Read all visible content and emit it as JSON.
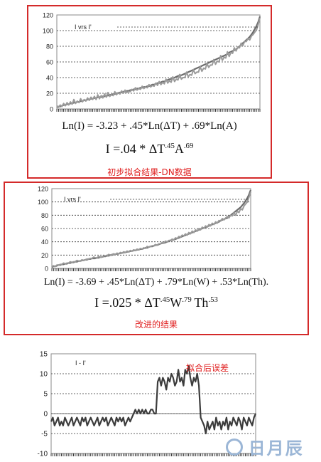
{
  "charts": [
    {
      "type": "line",
      "legend": "I vrs I'",
      "ylim": [
        0,
        120
      ],
      "yticks": [
        0,
        20,
        40,
        60,
        80,
        100,
        120
      ],
      "n": 120,
      "series": [
        {
          "values": [
            2,
            3,
            3,
            4,
            5,
            5,
            6,
            6,
            7,
            7,
            8,
            8,
            9,
            9,
            10,
            10,
            11,
            11,
            12,
            12,
            13,
            13,
            14,
            14,
            15,
            15,
            15,
            16,
            16,
            17,
            17,
            18,
            18,
            19,
            19,
            20,
            20,
            21,
            21,
            22,
            22,
            23,
            23,
            24,
            24,
            25,
            25,
            26,
            26,
            27,
            27,
            28,
            28,
            29,
            29,
            30,
            31,
            31,
            32,
            33,
            33,
            34,
            35,
            35,
            36,
            37,
            38,
            38,
            39,
            40,
            41,
            42,
            43,
            43,
            44,
            45,
            46,
            47,
            48,
            49,
            50,
            51,
            52,
            53,
            54,
            55,
            56,
            57,
            58,
            59,
            60,
            61,
            62,
            63,
            64,
            65,
            66,
            67,
            68,
            69,
            70,
            72,
            73,
            74,
            75,
            76,
            78,
            80,
            82,
            84,
            86,
            88,
            90,
            92,
            95,
            98,
            102,
            106,
            111,
            118
          ]
        },
        {
          "values": [
            4,
            2,
            5,
            3,
            7,
            4,
            8,
            5,
            9,
            6,
            12,
            7,
            10,
            8,
            13,
            9,
            12,
            10,
            14,
            11,
            15,
            12,
            16,
            12,
            18,
            13,
            17,
            14,
            19,
            15,
            21,
            16,
            18,
            17,
            22,
            18,
            21,
            19,
            23,
            20,
            24,
            21,
            22,
            22,
            25,
            23,
            27,
            24,
            26,
            25,
            29,
            26,
            28,
            27,
            31,
            28,
            30,
            29,
            33,
            30,
            35,
            31,
            34,
            32,
            38,
            33,
            36,
            34,
            41,
            35,
            38,
            37,
            44,
            38,
            40,
            40,
            47,
            41,
            44,
            43,
            50,
            45,
            47,
            47,
            54,
            48,
            52,
            51,
            58,
            53,
            56,
            56,
            63,
            57,
            61,
            60,
            68,
            62,
            66,
            65,
            73,
            67,
            72,
            71,
            78,
            74,
            79,
            78,
            84,
            81,
            86,
            86,
            90,
            88,
            93,
            95,
            98,
            101,
            108,
            116
          ]
        }
      ]
    },
    {
      "type": "line",
      "legend": "I  vrs  I'",
      "ylim": [
        0,
        120
      ],
      "yticks": [
        0,
        20,
        40,
        60,
        80,
        100,
        120
      ],
      "n": 120,
      "series": [
        {
          "values": [
            2,
            3,
            3,
            4,
            5,
            5,
            6,
            6,
            7,
            7,
            8,
            8,
            9,
            9,
            10,
            10,
            11,
            11,
            12,
            12,
            13,
            13,
            14,
            14,
            15,
            15,
            15,
            16,
            16,
            17,
            17,
            18,
            18,
            19,
            19,
            20,
            20,
            21,
            21,
            22,
            22,
            23,
            23,
            24,
            24,
            25,
            25,
            26,
            26,
            27,
            27,
            28,
            28,
            29,
            29,
            30,
            31,
            31,
            32,
            33,
            33,
            34,
            35,
            35,
            36,
            37,
            38,
            38,
            39,
            40,
            41,
            42,
            43,
            43,
            44,
            45,
            46,
            47,
            48,
            49,
            50,
            51,
            52,
            53,
            54,
            55,
            56,
            57,
            58,
            59,
            60,
            61,
            62,
            63,
            64,
            65,
            66,
            67,
            68,
            69,
            70,
            72,
            73,
            74,
            75,
            76,
            78,
            80,
            82,
            84,
            86,
            88,
            90,
            92,
            95,
            98,
            102,
            106,
            111,
            118
          ]
        },
        {
          "values": [
            3,
            4,
            3,
            5,
            5,
            6,
            6,
            8,
            7,
            8,
            8,
            10,
            9,
            10,
            10,
            12,
            11,
            11,
            13,
            12,
            13,
            14,
            14,
            15,
            15,
            17,
            16,
            16,
            18,
            17,
            17,
            19,
            19,
            19,
            21,
            20,
            21,
            22,
            21,
            23,
            22,
            24,
            23,
            25,
            24,
            26,
            25,
            27,
            26,
            28,
            27,
            29,
            28,
            30,
            29,
            31,
            30,
            33,
            32,
            33,
            34,
            34,
            36,
            35,
            37,
            37,
            39,
            38,
            41,
            40,
            42,
            42,
            44,
            43,
            46,
            45,
            48,
            47,
            50,
            49,
            52,
            50,
            54,
            52,
            56,
            54,
            58,
            56,
            60,
            58,
            62,
            60,
            64,
            62,
            66,
            64,
            68,
            66,
            70,
            68,
            72,
            71,
            75,
            73,
            76,
            78,
            76,
            80,
            79,
            84,
            80,
            86,
            84,
            90,
            88,
            94,
            97,
            100,
            107,
            115
          ]
        }
      ]
    },
    {
      "type": "line",
      "legend": "I  -  I'",
      "ylim": [
        -10,
        15
      ],
      "yticks": [
        -10,
        -5,
        0,
        5,
        10,
        15
      ],
      "n": 120,
      "series": [
        {
          "values": [
            -2,
            -1,
            -3,
            -2,
            -1,
            -3,
            -2,
            -3,
            -1,
            -2,
            -3,
            -2,
            -1,
            -3,
            -2,
            -1,
            -2,
            -3,
            -1,
            -2,
            -1,
            -3,
            -2,
            -1,
            -2,
            -3,
            -2,
            -1,
            -3,
            -2,
            -1,
            -2,
            -1,
            -3,
            -2,
            -1,
            -2,
            -3,
            -1,
            -2,
            -1,
            -2,
            -1,
            -3,
            -2,
            -1,
            -2,
            -1,
            0,
            1,
            0,
            1,
            0,
            1,
            0,
            1,
            0,
            0,
            1,
            1,
            0,
            0,
            8,
            9,
            7,
            9,
            8,
            6,
            9,
            8,
            10,
            9,
            7,
            8,
            11,
            8,
            9,
            7,
            11,
            10,
            12,
            9,
            7,
            9,
            8,
            10,
            7,
            -1,
            -2,
            -3,
            -5,
            -2,
            -4,
            -3,
            -2,
            -4,
            -1,
            -3,
            -2,
            -4,
            -2,
            -3,
            -1,
            -4,
            -2,
            -3,
            -1,
            -2,
            -3,
            -1,
            -2,
            -4,
            -1,
            -2,
            -3,
            -1,
            -2,
            -3,
            -1,
            0
          ]
        }
      ]
    }
  ],
  "eq1": {
    "line1": "Ln(I) = -3.23 + .45*Ln(ΔT) + .69*Ln(A)",
    "l2_a": "I =.04 * ΔT",
    "l2_e1": ".45",
    "l2_b": "A",
    "l2_e2": ".69"
  },
  "caption1": "初步拟合结果-DN数据",
  "eq2": {
    "line1": "Ln(I) = -3.69 + .45*Ln(ΔT) + .79*Ln(W) + .53*Ln(Th).",
    "l2_a": "I =.025 * ΔT",
    "l2_e1": ".45",
    "l2_b": "W",
    "l2_e2": ".79",
    "l2_c": "Th",
    "l2_e3": ".53"
  },
  "caption2": "改进的结果",
  "caption3": "拟合后误差",
  "watermark": "日月辰"
}
